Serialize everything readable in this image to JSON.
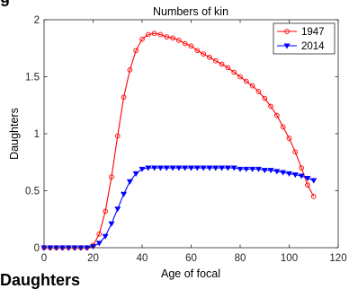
{
  "top_fragment": "g",
  "bottom_fragment": "Daughters",
  "chart_data": {
    "type": "line",
    "title": "Numbers of kin",
    "xlabel": "Age of focal",
    "ylabel": "Daughters",
    "xlim": [
      0,
      120
    ],
    "ylim": [
      0,
      2
    ],
    "xticks": [
      "0",
      "20",
      "40",
      "60",
      "80",
      "100",
      "120"
    ],
    "yticks": [
      "0",
      "0.5",
      "1",
      "1.5",
      "2"
    ],
    "x": [
      0,
      2.5,
      5,
      7.5,
      10,
      12.5,
      15,
      17.5,
      20,
      22.5,
      25,
      27.5,
      30,
      32.5,
      35,
      37.5,
      40,
      42.5,
      45,
      47.5,
      50,
      52.5,
      55,
      57.5,
      60,
      62.5,
      65,
      67.5,
      70,
      72.5,
      75,
      77.5,
      80,
      82.5,
      85,
      87.5,
      90,
      92.5,
      95,
      97.5,
      100,
      102.5,
      105,
      107.5,
      110
    ],
    "series": [
      {
        "name": "1947",
        "color": "#ff0000",
        "marker": "circle",
        "values": [
          0,
          0,
          0,
          0,
          0,
          0,
          0,
          0,
          0.02,
          0.12,
          0.32,
          0.62,
          0.98,
          1.32,
          1.56,
          1.73,
          1.83,
          1.87,
          1.88,
          1.87,
          1.85,
          1.84,
          1.82,
          1.79,
          1.77,
          1.73,
          1.7,
          1.67,
          1.64,
          1.61,
          1.58,
          1.54,
          1.5,
          1.46,
          1.42,
          1.37,
          1.31,
          1.24,
          1.16,
          1.06,
          0.96,
          0.84,
          0.7,
          0.55,
          0.45
        ]
      },
      {
        "name": "2014",
        "color": "#0000ff",
        "marker": "triangle-down",
        "values": [
          0,
          0,
          0,
          0,
          0,
          0,
          0,
          0,
          0.01,
          0.04,
          0.1,
          0.21,
          0.34,
          0.47,
          0.58,
          0.65,
          0.69,
          0.7,
          0.7,
          0.7,
          0.7,
          0.7,
          0.7,
          0.7,
          0.7,
          0.7,
          0.7,
          0.7,
          0.7,
          0.7,
          0.7,
          0.7,
          0.69,
          0.69,
          0.69,
          0.69,
          0.68,
          0.68,
          0.67,
          0.66,
          0.65,
          0.64,
          0.63,
          0.61,
          0.59
        ]
      }
    ],
    "legend_position": "top-right",
    "grid": false
  }
}
